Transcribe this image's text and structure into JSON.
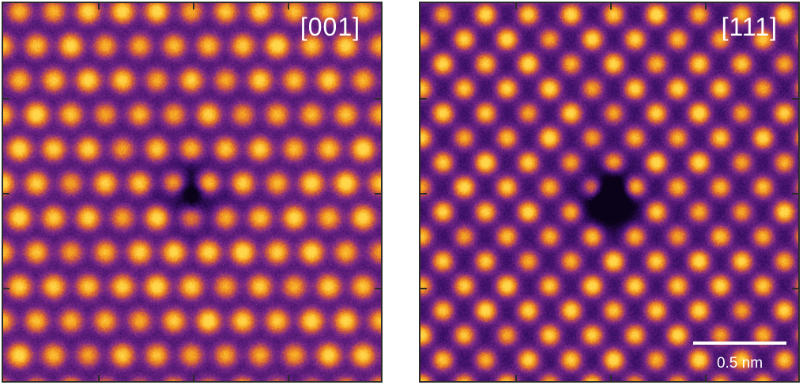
{
  "panels": [
    {
      "label": "[001]",
      "lattice": "square",
      "vacancy_shape": "cross"
    },
    {
      "label": "[111]",
      "lattice": "hexagonal",
      "vacancy_shape": "round"
    }
  ],
  "scale_bar": {
    "label": "0.5 nm"
  },
  "colormap": [
    "#0a0218",
    "#3a0f68",
    "#7c2a8a",
    "#d05a3f",
    "#f59f1e",
    "#ffd64a"
  ]
}
